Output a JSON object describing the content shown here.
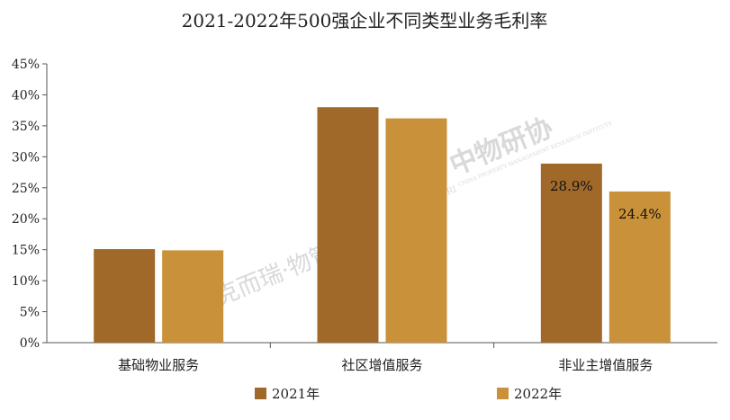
{
  "chart_data": {
    "type": "bar",
    "title": "2021-2022年500强企业不同类型业务毛利率",
    "categories": [
      "基础物业服务",
      "社区增值服务",
      "非业主增值服务"
    ],
    "series": [
      {
        "name": "2021年",
        "color": "#A0692A",
        "values": [
          15.1,
          38.0,
          28.9
        ]
      },
      {
        "name": "2022年",
        "color": "#C9913A",
        "values": [
          14.9,
          36.2,
          24.4
        ]
      }
    ],
    "data_labels": [
      {
        "series": 0,
        "category": 2,
        "text": "28.9%"
      },
      {
        "series": 1,
        "category": 2,
        "text": "24.4%"
      }
    ],
    "ylim": [
      0,
      45
    ],
    "yticks": [
      0,
      5,
      10,
      15,
      20,
      25,
      30,
      35,
      40,
      45
    ],
    "ytick_labels": [
      "0%",
      "5%",
      "10%",
      "15%",
      "20%",
      "25%",
      "30%",
      "35%",
      "40%",
      "45%"
    ],
    "xlabel": "",
    "ylabel": "",
    "grid": false,
    "legend_position": "bottom"
  },
  "watermarks": {
    "center_brand": "中物研协",
    "center_sub": "CHINA PROPERTY MANAGEMENT RESEARCH INSTITUTE",
    "center_abbr": "CPMRI",
    "left_brand": "克而瑞·物管",
    "colors": {
      "cpmri_green": "#A8C46E",
      "seal_red": "#E07A6B"
    }
  }
}
